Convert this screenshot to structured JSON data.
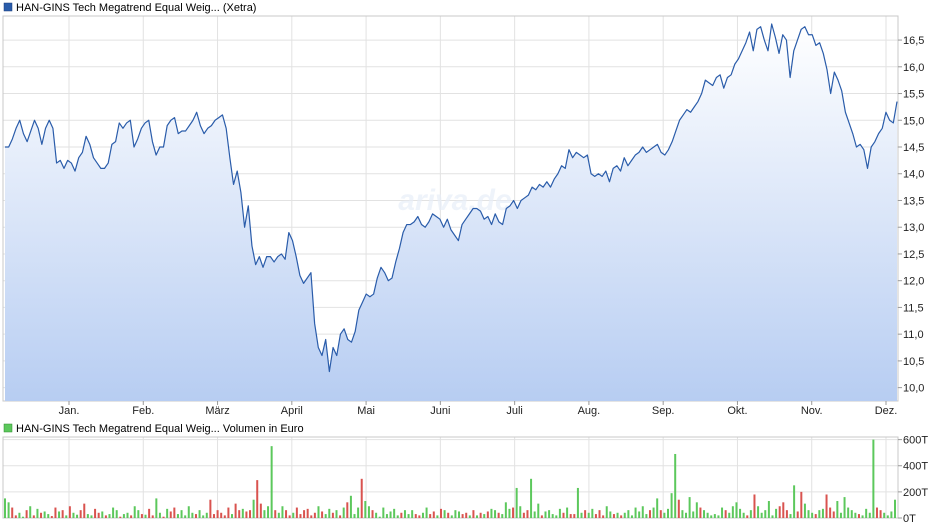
{
  "price_chart": {
    "legend_label": "HAN-GINS Tech Megatrend Equal Weig... (Xetra)",
    "series_color": "#2a5caa",
    "fill_top_color": "#ffffff",
    "fill_bottom_color": "#b7cdf2",
    "watermark": "ariva.de"
  },
  "volume_chart": {
    "legend_label": "HAN-GINS Tech Megatrend Equal Weig... Volumen in Euro",
    "up_color": "#5cc85c",
    "down_color": "#d9534f"
  },
  "chart_data": [
    {
      "type": "area",
      "series": [
        {
          "name": "HAN-GINS Tech Megatrend Equal Weig... (Xetra)"
        }
      ],
      "x_tick_labels": [
        "Jan.",
        "Feb.",
        "März",
        "April",
        "Mai",
        "Juni",
        "Juli",
        "Aug.",
        "Sep.",
        "Okt.",
        "Nov.",
        "Dez."
      ],
      "y_tick_labels": [
        "10,0",
        "10,5",
        "11,0",
        "11,5",
        "12,0",
        "12,5",
        "13,0",
        "13,5",
        "14,0",
        "14,5",
        "15,0",
        "15,5",
        "16,0",
        "16,5"
      ],
      "ylim": [
        9.75,
        16.95
      ],
      "grid": true,
      "values": [
        14.5,
        14.5,
        14.65,
        14.85,
        15.0,
        14.75,
        14.6,
        14.8,
        15.0,
        14.85,
        14.55,
        14.85,
        15.0,
        14.85,
        14.2,
        14.25,
        14.1,
        14.25,
        14.2,
        14.05,
        14.3,
        14.4,
        14.7,
        14.55,
        14.3,
        14.2,
        14.1,
        14.1,
        14.2,
        14.55,
        14.6,
        14.95,
        14.85,
        14.95,
        15.0,
        14.5,
        14.65,
        14.85,
        14.95,
        15.0,
        14.6,
        14.35,
        14.5,
        14.5,
        14.9,
        15.0,
        15.05,
        14.75,
        14.8,
        14.8,
        14.9,
        15.0,
        15.15,
        14.9,
        14.75,
        14.85,
        14.9,
        15.0,
        15.05,
        15.1,
        14.85,
        14.3,
        13.8,
        14.05,
        13.65,
        13.0,
        13.4,
        12.65,
        12.3,
        12.45,
        12.25,
        12.45,
        12.45,
        12.35,
        12.45,
        12.5,
        12.4,
        12.9,
        12.75,
        12.45,
        12.1,
        11.95,
        12.05,
        12.15,
        11.2,
        10.75,
        10.6,
        10.9,
        10.3,
        10.75,
        10.6,
        11.0,
        11.1,
        10.9,
        10.85,
        11.05,
        11.45,
        11.6,
        11.75,
        11.7,
        11.75,
        12.05,
        12.25,
        12.15,
        12.0,
        12.05,
        12.35,
        12.6,
        12.9,
        13.05,
        13.05,
        13.1,
        13.2,
        13.05,
        13.0,
        13.1,
        13.25,
        13.2,
        13.15,
        13.0,
        13.15,
        12.95,
        12.85,
        12.75,
        13.05,
        13.15,
        13.25,
        13.35,
        13.35,
        13.3,
        13.15,
        13.2,
        13.05,
        13.25,
        13.1,
        13.05,
        13.35,
        13.4,
        13.5,
        13.35,
        13.5,
        13.55,
        13.6,
        13.75,
        13.7,
        13.8,
        13.75,
        13.85,
        13.75,
        13.9,
        14.0,
        14.15,
        14.1,
        14.45,
        14.3,
        14.4,
        14.35,
        14.3,
        14.35,
        14.0,
        13.95,
        14.0,
        13.95,
        14.05,
        13.85,
        14.1,
        14.15,
        14.05,
        14.3,
        14.15,
        14.25,
        14.35,
        14.4,
        14.5,
        14.4,
        14.45,
        14.5,
        14.55,
        14.4,
        14.35,
        14.45,
        14.6,
        14.8,
        15.0,
        15.1,
        15.2,
        15.15,
        15.25,
        15.35,
        15.5,
        15.75,
        15.7,
        15.65,
        15.8,
        15.85,
        15.6,
        15.8,
        15.85,
        16.05,
        16.15,
        16.3,
        16.45,
        16.65,
        16.3,
        16.7,
        16.75,
        16.5,
        16.3,
        16.8,
        16.55,
        16.25,
        16.6,
        16.5,
        15.8,
        16.3,
        16.5,
        16.7,
        16.75,
        16.6,
        16.6,
        16.4,
        16.45,
        16.25,
        15.95,
        15.5,
        15.9,
        15.75,
        15.55,
        15.15,
        14.95,
        14.75,
        14.5,
        14.55,
        14.45,
        14.1,
        14.5,
        14.6,
        14.75,
        14.85,
        15.15,
        15.0,
        14.95,
        15.35
      ]
    },
    {
      "type": "bar",
      "series": [
        {
          "name": "HAN-GINS Tech Megatrend Equal Weig... Volumen in Euro"
        }
      ],
      "y_tick_labels": [
        "0T",
        "200T",
        "400T",
        "600T"
      ],
      "ylim": [
        0,
        620
      ],
      "unit": "T",
      "values": [
        150,
        120,
        80,
        20,
        40,
        10,
        60,
        90,
        20,
        70,
        40,
        50,
        30,
        15,
        80,
        50,
        60,
        20,
        90,
        40,
        25,
        60,
        110,
        30,
        20,
        70,
        40,
        50,
        20,
        30,
        80,
        60,
        10,
        30,
        40,
        20,
        90,
        60,
        30,
        25,
        70,
        20,
        150,
        40,
        10,
        70,
        50,
        80,
        30,
        60,
        20,
        90,
        40,
        30,
        60,
        20,
        40,
        140,
        30,
        60,
        40,
        20,
        80,
        30,
        110,
        60,
        70,
        50,
        60,
        140,
        290,
        110,
        60,
        90,
        550,
        60,
        40,
        90,
        60,
        20,
        40,
        80,
        30,
        60,
        70,
        20,
        40,
        90,
        50,
        30,
        70,
        40,
        60,
        20,
        80,
        120,
        170,
        30,
        80,
        300,
        130,
        90,
        60,
        40,
        10,
        80,
        30,
        50,
        70,
        20,
        40,
        60,
        30,
        60,
        30,
        20,
        40,
        80,
        30,
        50,
        20,
        70,
        60,
        40,
        20,
        60,
        50,
        30,
        40,
        20,
        60,
        20,
        40,
        30,
        50,
        70,
        60,
        40,
        30,
        120,
        70,
        80,
        230,
        90,
        40,
        60,
        300,
        50,
        110,
        20,
        50,
        60,
        30,
        20,
        70,
        40,
        80,
        30,
        30,
        230,
        40,
        60,
        40,
        70,
        30,
        60,
        20,
        90,
        50,
        30,
        40,
        20,
        40,
        60,
        20,
        80,
        50,
        90,
        30,
        60,
        80,
        150,
        60,
        40,
        70,
        190,
        490,
        140,
        60,
        40,
        160,
        50,
        120,
        80,
        60,
        40,
        20,
        30,
        20,
        80,
        60,
        40,
        90,
        120,
        70,
        40,
        20,
        60,
        180,
        90,
        40,
        60,
        130,
        20,
        70,
        90,
        120,
        60,
        30,
        250,
        50,
        200,
        110,
        60,
        40,
        30,
        60,
        70,
        180,
        80,
        50,
        130,
        40,
        160,
        80,
        60,
        40,
        30,
        20,
        70,
        40,
        600,
        80,
        60,
        40,
        20,
        50,
        140
      ],
      "direction": [
        "u",
        "u",
        "d",
        "d",
        "u",
        "u",
        "d",
        "u",
        "d",
        "u",
        "d",
        "u",
        "u",
        "d",
        "d",
        "u",
        "d",
        "u",
        "d",
        "u",
        "u",
        "d",
        "d",
        "u",
        "u",
        "d",
        "d",
        "u",
        "d",
        "u",
        "u",
        "u",
        "d",
        "u",
        "u",
        "d",
        "u",
        "u",
        "d",
        "u",
        "d",
        "d",
        "u",
        "u",
        "d",
        "u",
        "d",
        "d",
        "u",
        "u",
        "u",
        "u",
        "u",
        "d",
        "u",
        "u",
        "u",
        "d",
        "d",
        "d",
        "d",
        "d",
        "d",
        "u",
        "d",
        "d",
        "u",
        "d",
        "d",
        "u",
        "d",
        "d",
        "u",
        "u",
        "u",
        "d",
        "u",
        "u",
        "d",
        "d",
        "u",
        "d",
        "d",
        "d",
        "d",
        "d",
        "d",
        "u",
        "d",
        "u",
        "u",
        "d",
        "u",
        "d",
        "u",
        "d",
        "u",
        "u",
        "u",
        "d",
        "u",
        "u",
        "d",
        "u",
        "u",
        "u",
        "u",
        "u",
        "u",
        "u",
        "d",
        "u",
        "u",
        "u",
        "d",
        "d",
        "u",
        "u",
        "d",
        "d",
        "u",
        "d",
        "u",
        "d",
        "u",
        "u",
        "u",
        "d",
        "d",
        "u",
        "d",
        "u",
        "d",
        "u",
        "d",
        "u",
        "u",
        "d",
        "u",
        "u",
        "u",
        "d",
        "u",
        "u",
        "d",
        "d",
        "u",
        "u",
        "u",
        "d",
        "u",
        "u",
        "u",
        "u",
        "u",
        "d",
        "u",
        "d",
        "d",
        "u",
        "u",
        "d",
        "u",
        "u",
        "d",
        "d",
        "d",
        "u",
        "u",
        "d",
        "u",
        "d",
        "u",
        "u",
        "u",
        "u",
        "u",
        "u",
        "u",
        "d",
        "u",
        "u",
        "d",
        "u",
        "u",
        "u",
        "u",
        "d",
        "u",
        "u",
        "u",
        "u",
        "u",
        "d",
        "u",
        "u",
        "u",
        "u",
        "u",
        "u",
        "d",
        "u",
        "u",
        "u",
        "u",
        "u",
        "d",
        "u",
        "d",
        "u",
        "u",
        "u",
        "u",
        "u",
        "u",
        "d",
        "d",
        "d",
        "u",
        "u",
        "d",
        "d",
        "u",
        "u",
        "u",
        "d",
        "u",
        "u",
        "d",
        "d",
        "d",
        "u",
        "u",
        "u",
        "u",
        "u",
        "u",
        "d",
        "u",
        "u",
        "u",
        "u",
        "d",
        "d",
        "u",
        "u"
      ]
    }
  ]
}
